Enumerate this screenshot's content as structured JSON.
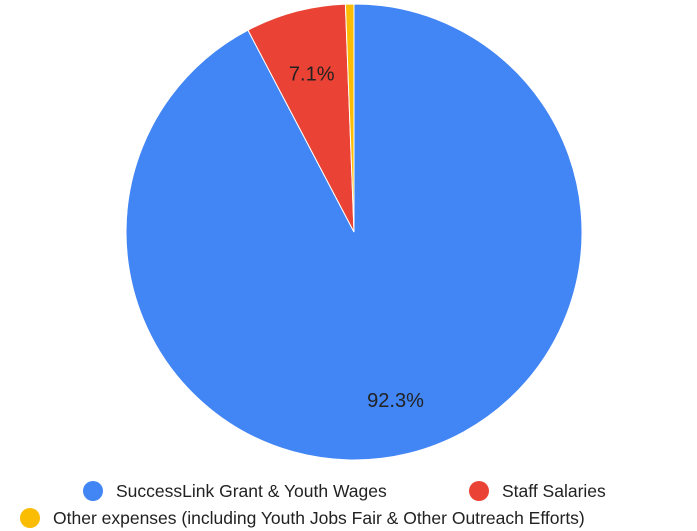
{
  "chart_data": {
    "type": "pie",
    "title": "",
    "series": [
      {
        "name": "SuccessLink Grant & Youth Wages",
        "value": 92.3,
        "label": "92.3%",
        "color": "#4285F4"
      },
      {
        "name": "Staff Salaries",
        "value": 7.1,
        "label": "7.1%",
        "color": "#EA4335"
      },
      {
        "name": "Other expenses (including Youth Jobs Fair & Other Outreach Efforts)",
        "value": 0.6,
        "label": "",
        "color": "#FBBC04"
      }
    ],
    "legend_position": "bottom"
  }
}
